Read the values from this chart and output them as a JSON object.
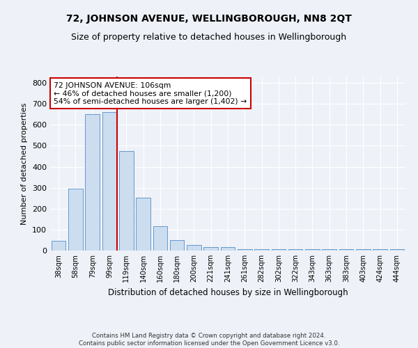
{
  "title": "72, JOHNSON AVENUE, WELLINGBOROUGH, NN8 2QT",
  "subtitle": "Size of property relative to detached houses in Wellingborough",
  "xlabel": "Distribution of detached houses by size in Wellingborough",
  "ylabel": "Number of detached properties",
  "categories": [
    "38sqm",
    "58sqm",
    "79sqm",
    "99sqm",
    "119sqm",
    "140sqm",
    "160sqm",
    "180sqm",
    "200sqm",
    "221sqm",
    "241sqm",
    "261sqm",
    "282sqm",
    "302sqm",
    "322sqm",
    "343sqm",
    "363sqm",
    "383sqm",
    "403sqm",
    "424sqm",
    "444sqm"
  ],
  "values": [
    45,
    295,
    650,
    660,
    475,
    252,
    115,
    50,
    28,
    15,
    15,
    8,
    8,
    8,
    8,
    8,
    8,
    5,
    8,
    5,
    8
  ],
  "bar_color": "#ccddf0",
  "bar_edge_color": "#6699cc",
  "bar_width": 0.85,
  "ylim": [
    0,
    830
  ],
  "yticks": [
    0,
    100,
    200,
    300,
    400,
    500,
    600,
    700,
    800
  ],
  "vline_color": "#cc0000",
  "annotation_text": "72 JOHNSON AVENUE: 106sqm\n← 46% of detached houses are smaller (1,200)\n54% of semi-detached houses are larger (1,402) →",
  "annotation_box_color": "#cc0000",
  "footer": "Contains HM Land Registry data © Crown copyright and database right 2024.\nContains public sector information licensed under the Open Government Licence v3.0.",
  "background_color": "#eef2f8",
  "grid_color": "#ffffff",
  "title_fontsize": 10,
  "subtitle_fontsize": 9
}
